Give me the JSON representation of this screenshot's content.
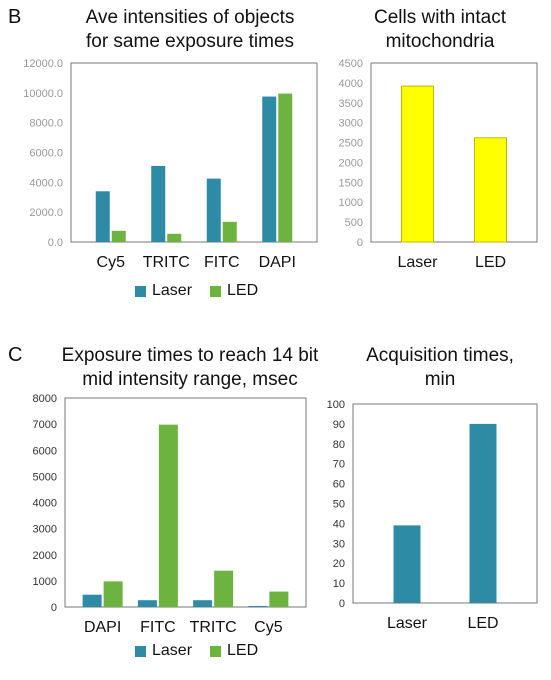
{
  "panels": {
    "b": {
      "letter": "B"
    },
    "c": {
      "letter": "C"
    }
  },
  "colors": {
    "laser": "#2e8ba6",
    "led": "#6db33f",
    "yellow": "#ffff00"
  },
  "chart_data": [
    {
      "id": "b-left",
      "type": "bar",
      "title": "Ave intensities of objects\nfor same exposure times",
      "categories": [
        "Cy5",
        "TRITC",
        "FITC",
        "DAPI"
      ],
      "series": [
        {
          "name": "Laser",
          "values": [
            3400,
            5100,
            4250,
            9750
          ]
        },
        {
          "name": "LED",
          "values": [
            750,
            550,
            1350,
            9950
          ]
        }
      ],
      "ylim": [
        0,
        12000
      ],
      "yticks": [
        "0.0",
        "2000.0",
        "4000.0",
        "6000.0",
        "8000.0",
        "10000.0",
        "12000.0"
      ],
      "grid": false,
      "legend": "bottom"
    },
    {
      "id": "b-right",
      "type": "bar",
      "title": "Cells with intact\nmitochondria",
      "categories": [
        "Laser",
        "LED"
      ],
      "series": [
        {
          "values": [
            3920,
            2620
          ]
        }
      ],
      "ylim": [
        0,
        4500
      ],
      "yticks": [
        "0",
        "500",
        "1000",
        "1500",
        "2000",
        "2500",
        "3000",
        "3500",
        "4000",
        "4500"
      ],
      "grid": false
    },
    {
      "id": "c-left",
      "type": "bar",
      "title": "Exposure times to reach 14 bit\nmid intensity range, msec",
      "categories": [
        "DAPI",
        "FITC",
        "TRITC",
        "Cy5"
      ],
      "series": [
        {
          "name": "Laser",
          "values": [
            470,
            260,
            260,
            40
          ]
        },
        {
          "name": "LED",
          "values": [
            980,
            6980,
            1390,
            590
          ]
        }
      ],
      "ylim": [
        0,
        8000
      ],
      "yticks": [
        "0",
        "1000",
        "2000",
        "3000",
        "4000",
        "5000",
        "6000",
        "7000",
        "8000"
      ],
      "grid": false,
      "legend": "bottom"
    },
    {
      "id": "c-right",
      "type": "bar",
      "title": "Acquisition times,\nmin",
      "categories": [
        "Laser",
        "LED"
      ],
      "series": [
        {
          "values": [
            39,
            90
          ]
        }
      ],
      "ylim": [
        0,
        100
      ],
      "yticks": [
        "0",
        "10",
        "20",
        "30",
        "40",
        "50",
        "60",
        "70",
        "80",
        "90",
        "100"
      ],
      "grid": false
    }
  ]
}
